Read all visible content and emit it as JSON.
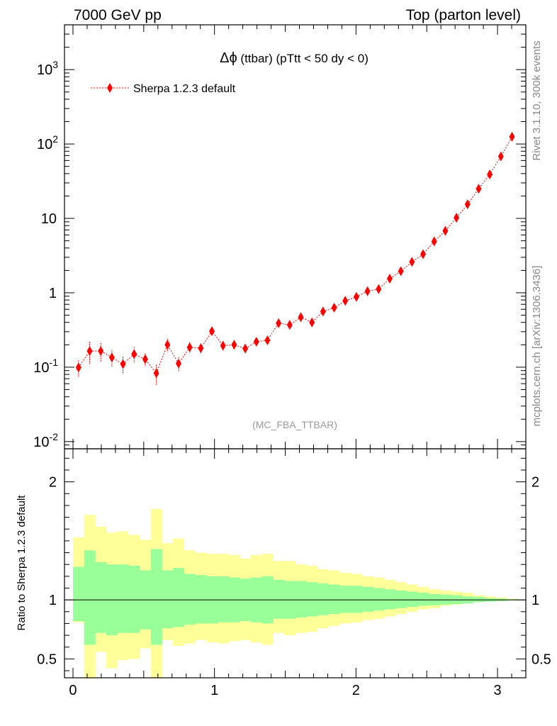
{
  "header": {
    "left": "7000 GeV pp",
    "right": "Top (parton level)"
  },
  "side_labels": {
    "rivet": "Rivet 3.1.10,  300k events",
    "mcplots": "mcplots.cern.ch [arXiv:1306.3436]"
  },
  "chart_data": [
    {
      "type": "scatter",
      "title": "Δϕ (ttbar) (pTtt < 50 dy < 0)",
      "title_symbol": "Δϕ",
      "title_rest": " (ttbar) (pTtt < 50 dy < 0)",
      "watermark": "(MC_FBA_TTBAR)",
      "xlim": [
        -0.06,
        3.2
      ],
      "ylim": [
        0.008,
        4000
      ],
      "yscale": "log",
      "ytick_labels": [
        "10^-2",
        "10^-1",
        "1",
        "10",
        "10^2",
        "10^3"
      ],
      "legend": {
        "label": "Sherpa 1.2.3 default",
        "position": "top-left",
        "color": "#ff0000"
      },
      "series": [
        {
          "name": "Sherpa 1.2.3 default",
          "color": "#ff0000",
          "x": [
            0.0393,
            0.1178,
            0.1963,
            0.2749,
            0.3534,
            0.432,
            0.5105,
            0.589,
            0.6676,
            0.7461,
            0.8247,
            0.9032,
            0.9817,
            1.0603,
            1.1388,
            1.2174,
            1.2959,
            1.3744,
            1.453,
            1.5315,
            1.6101,
            1.6886,
            1.7671,
            1.8457,
            1.9242,
            2.0028,
            2.0813,
            2.1598,
            2.2384,
            2.3169,
            2.3955,
            2.474,
            2.5525,
            2.6311,
            2.7096,
            2.7882,
            2.8667,
            2.9452,
            3.0238,
            3.1023
          ],
          "y": [
            0.099,
            0.165,
            0.165,
            0.135,
            0.11,
            0.15,
            0.128,
            0.083,
            0.2,
            0.112,
            0.185,
            0.18,
            0.305,
            0.195,
            0.2,
            0.178,
            0.22,
            0.23,
            0.39,
            0.37,
            0.47,
            0.4,
            0.56,
            0.63,
            0.78,
            0.88,
            1.05,
            1.12,
            1.55,
            1.95,
            2.6,
            3.3,
            4.9,
            6.8,
            10.2,
            15.5,
            25,
            39,
            68,
            125
          ],
          "yerr_rel": [
            0.25,
            0.33,
            0.28,
            0.26,
            0.26,
            0.24,
            0.2,
            0.3,
            0.2,
            0.22,
            0.17,
            0.16,
            0.13,
            0.14,
            0.12,
            0.12,
            0.12,
            0.11,
            0.09,
            0.09,
            0.08,
            0.08,
            0.07,
            0.07,
            0.06,
            0.06,
            0.05,
            0.05,
            0.045,
            0.04,
            0.035,
            0.03,
            0.025,
            0.02,
            0.02,
            0.015,
            0.012,
            0.01,
            0.008,
            0.006
          ]
        }
      ]
    },
    {
      "type": "area",
      "ylabel": "Ratio to Sherpa 1.2.3 default",
      "xlim": [
        -0.06,
        3.2
      ],
      "ylim": [
        0.34,
        2.28
      ],
      "xtick_labels": [
        "0",
        "1",
        "2",
        "3"
      ],
      "ytick_labels": [
        "0.5",
        "1",
        "2"
      ],
      "reference_line": 1,
      "bin_edges": [
        0,
        0.0785,
        0.157,
        0.2356,
        0.3142,
        0.3927,
        0.4712,
        0.5498,
        0.6283,
        0.7069,
        0.7854,
        0.8639,
        0.9425,
        1.021,
        1.0996,
        1.1781,
        1.2566,
        1.3352,
        1.4137,
        1.4923,
        1.5708,
        1.6493,
        1.7279,
        1.8064,
        1.885,
        1.9635,
        2.042,
        2.1206,
        2.1991,
        2.2777,
        2.3562,
        2.4347,
        2.5133,
        2.5918,
        2.6704,
        2.7489,
        2.8274,
        2.906,
        2.9845,
        3.0631,
        3.1416
      ],
      "bands": [
        {
          "color": "#ffff99",
          "upper": [
            1.53,
            1.72,
            1.62,
            1.57,
            1.58,
            1.55,
            1.51,
            1.77,
            1.48,
            1.52,
            1.42,
            1.4,
            1.39,
            1.39,
            1.38,
            1.35,
            1.38,
            1.39,
            1.33,
            1.33,
            1.3,
            1.29,
            1.26,
            1.25,
            1.23,
            1.22,
            1.2,
            1.19,
            1.17,
            1.15,
            1.13,
            1.11,
            1.09,
            1.08,
            1.07,
            1.06,
            1.04,
            1.03,
            1.02,
            1.01
          ],
          "lower": [
            0.81,
            0.34,
            0.56,
            0.42,
            0.49,
            0.5,
            0.59,
            0.34,
            0.66,
            0.61,
            0.63,
            0.66,
            0.64,
            0.63,
            0.65,
            0.66,
            0.64,
            0.62,
            0.72,
            0.7,
            0.72,
            0.73,
            0.76,
            0.78,
            0.8,
            0.81,
            0.83,
            0.84,
            0.86,
            0.88,
            0.9,
            0.92,
            0.93,
            0.95,
            0.96,
            0.97,
            0.98,
            0.99,
            0.995,
            1.0
          ]
        },
        {
          "color": "#99ff99",
          "upper": [
            1.28,
            1.42,
            1.32,
            1.3,
            1.3,
            1.29,
            1.25,
            1.43,
            1.25,
            1.27,
            1.22,
            1.21,
            1.2,
            1.2,
            1.19,
            1.18,
            1.19,
            1.2,
            1.17,
            1.16,
            1.16,
            1.15,
            1.14,
            1.13,
            1.12,
            1.12,
            1.11,
            1.1,
            1.09,
            1.08,
            1.07,
            1.06,
            1.05,
            1.045,
            1.04,
            1.03,
            1.025,
            1.015,
            1.01,
            1.005
          ],
          "lower": [
            0.82,
            0.62,
            0.72,
            0.7,
            0.72,
            0.72,
            0.75,
            0.62,
            0.76,
            0.77,
            0.79,
            0.8,
            0.8,
            0.81,
            0.81,
            0.82,
            0.81,
            0.8,
            0.84,
            0.84,
            0.85,
            0.86,
            0.87,
            0.88,
            0.89,
            0.89,
            0.9,
            0.91,
            0.92,
            0.93,
            0.94,
            0.95,
            0.955,
            0.96,
            0.965,
            0.97,
            0.98,
            0.985,
            0.99,
            0.995
          ]
        }
      ]
    }
  ]
}
